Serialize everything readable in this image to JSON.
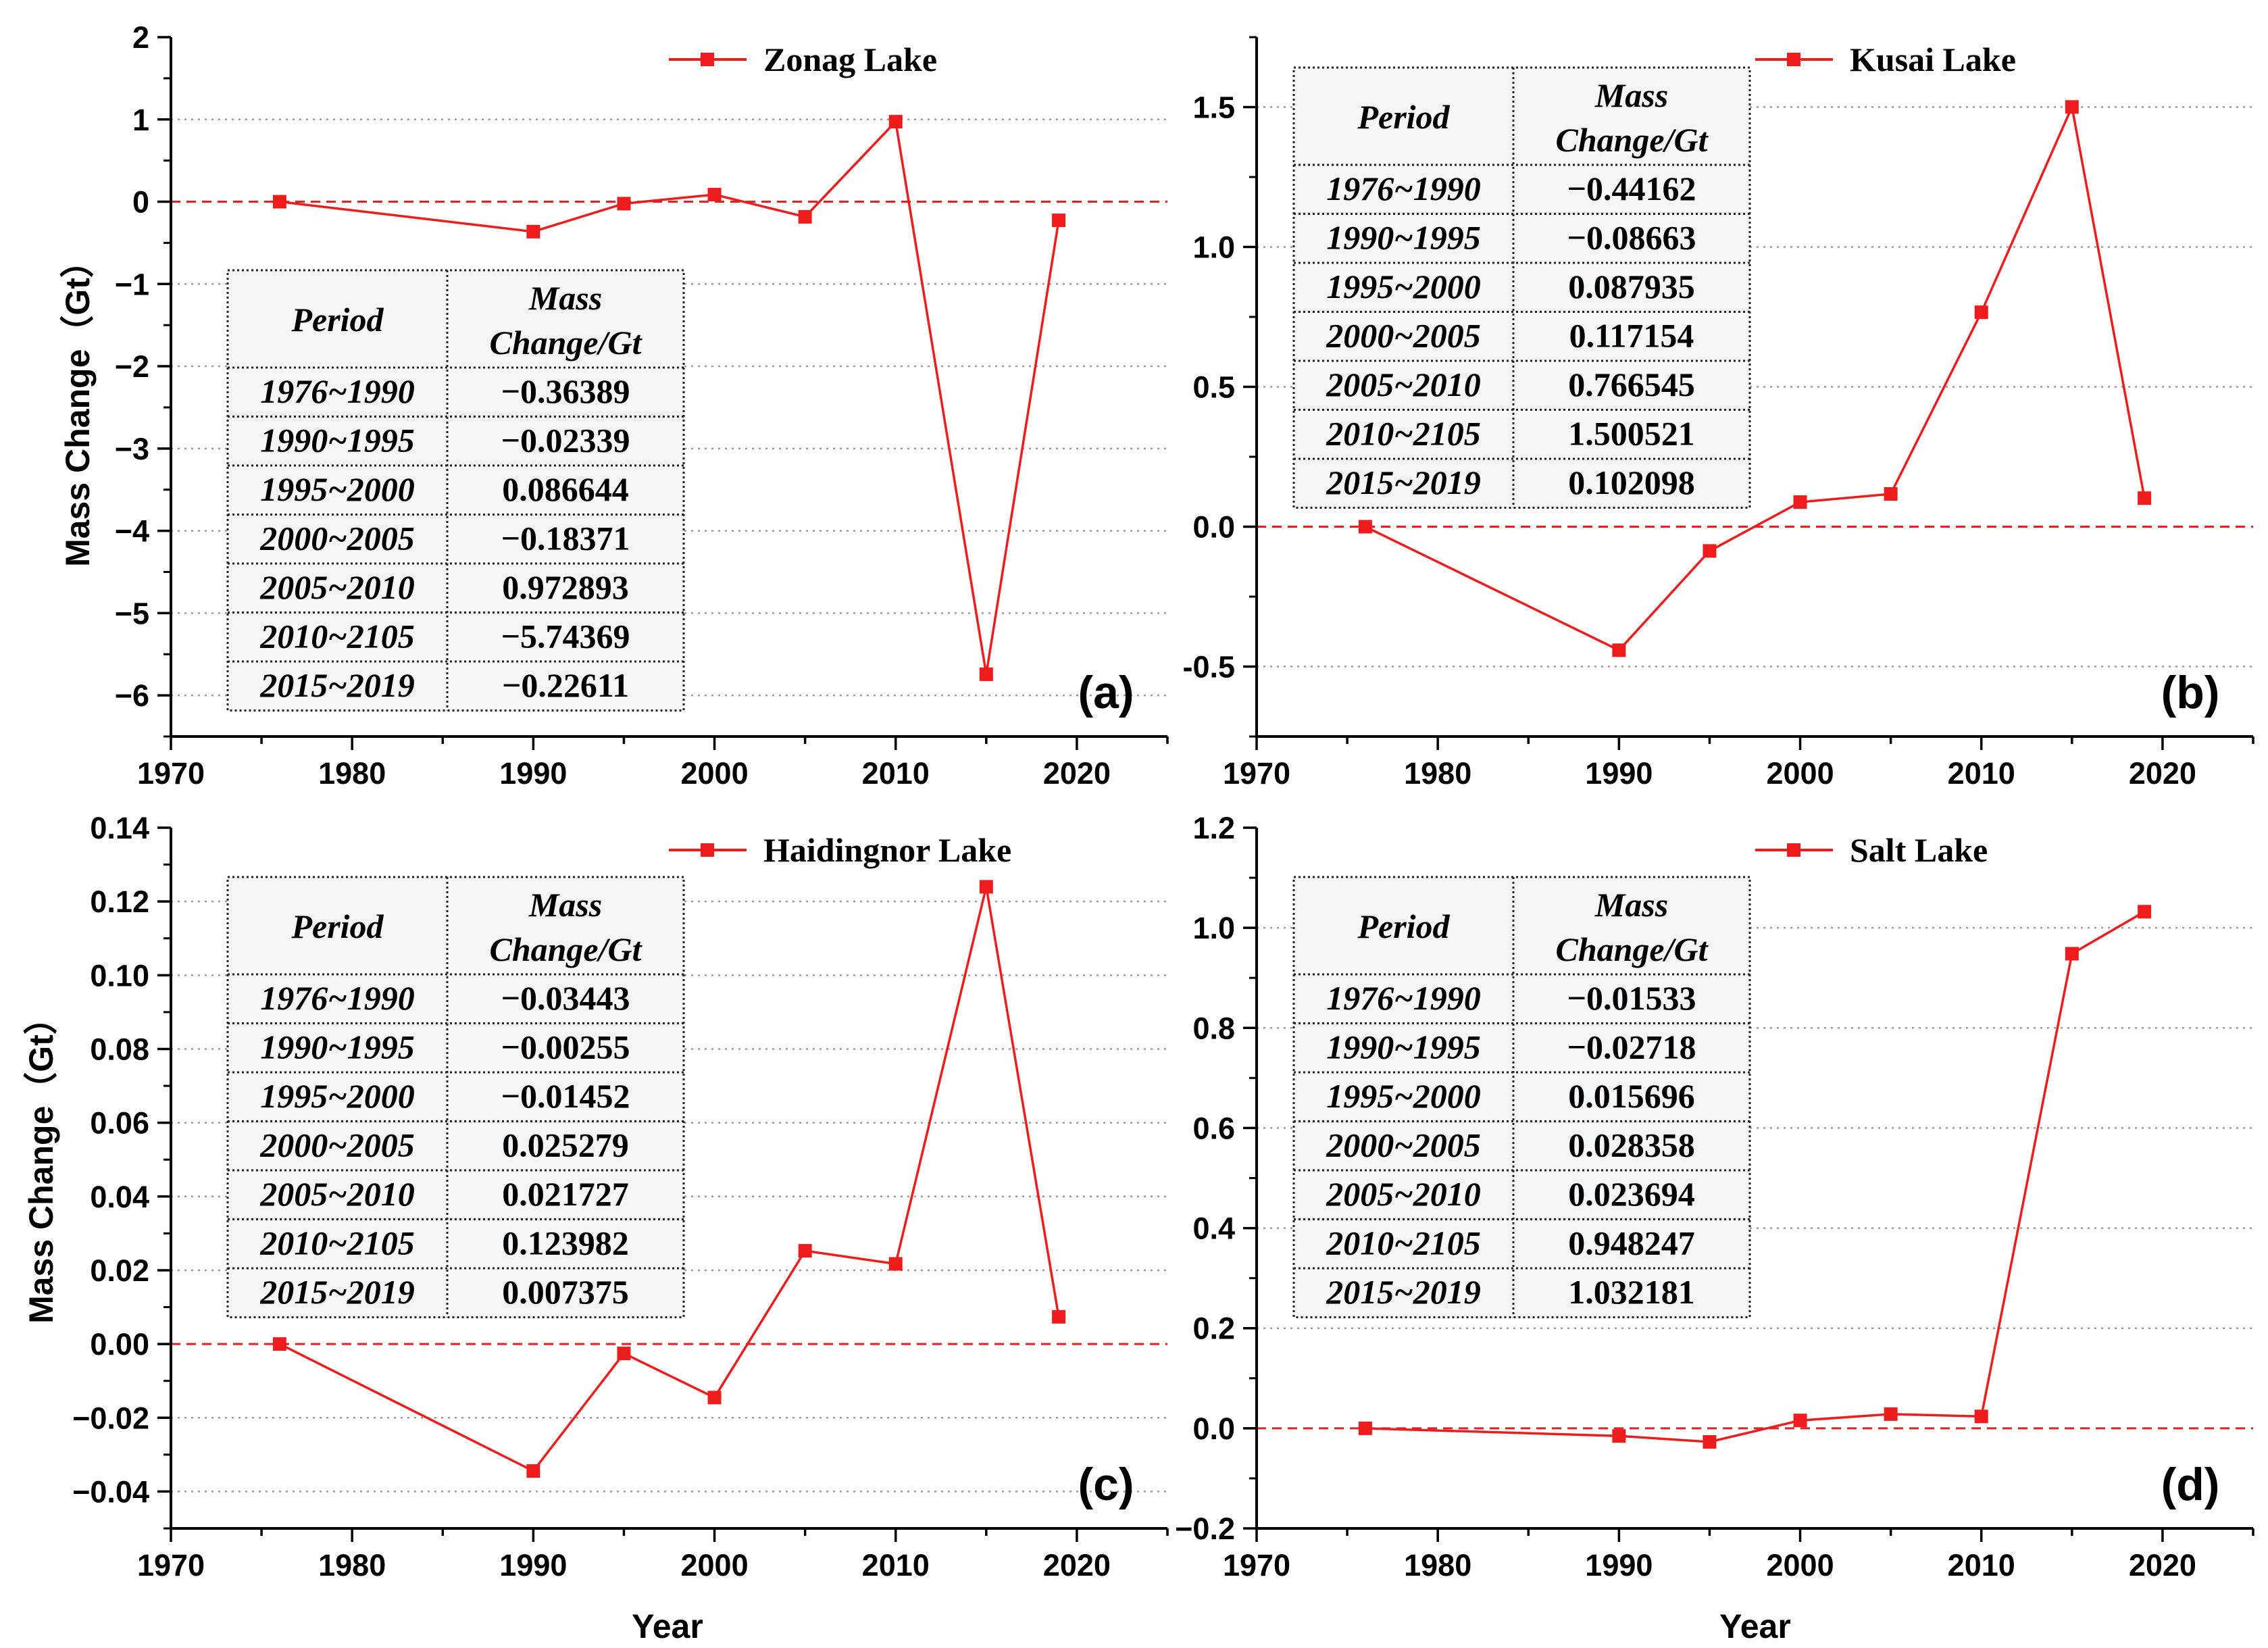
{
  "x_axis_label": "Year",
  "y_axis_label": "Mass Change（Gt）",
  "table_headers": {
    "period": "Period",
    "mass_line1": "Mass",
    "mass_line2": "Change/Gt"
  },
  "colors": {
    "series": "#ee1c1c",
    "zero_line": "#ee1c1c",
    "grid": "#9a9a9a",
    "axis": "#000000",
    "table_bg": "#f2f6f9"
  },
  "chart_data": [
    {
      "type": "line",
      "panel_label": "(a)",
      "title": "",
      "legend": "Zonag Lake",
      "xlabel": "",
      "ylabel": "Mass Change（Gt）",
      "xlim": [
        1970,
        2025
      ],
      "ylim": [
        -6.5,
        2
      ],
      "x_ticks": [
        1970,
        1980,
        1990,
        2000,
        2010,
        2020
      ],
      "y_ticks": [
        2,
        1,
        0,
        -1,
        -2,
        -3,
        -4,
        -5,
        -6
      ],
      "y_tick_labels": [
        "2",
        "1",
        "0",
        "−1",
        "−2",
        "−3",
        "−4",
        "−5",
        "−6"
      ],
      "grid_lines": [
        1,
        -1,
        -2,
        -3,
        -4,
        -5,
        -6
      ],
      "minor_y_step": 0.5,
      "x": [
        1976,
        1990,
        1995,
        2000,
        2005,
        2010,
        2015,
        2019
      ],
      "y": [
        0,
        -0.36389,
        -0.02339,
        0.086644,
        -0.18371,
        0.972893,
        -5.74369,
        -0.22611
      ],
      "table": [
        [
          "1976~1990",
          "−0.36389"
        ],
        [
          "1990~1995",
          "−0.02339"
        ],
        [
          "1995~2000",
          "0.086644"
        ],
        [
          "2000~2005",
          "−0.18371"
        ],
        [
          "2005~2010",
          "0.972893"
        ],
        [
          "2010~2105",
          "−5.74369"
        ],
        [
          "2015~2019",
          "−0.22611"
        ]
      ]
    },
    {
      "type": "line",
      "panel_label": "(b)",
      "title": "",
      "legend": "Kusai Lake",
      "xlabel": "",
      "ylabel": "",
      "xlim": [
        1970,
        2025
      ],
      "ylim": [
        -0.75,
        1.75
      ],
      "x_ticks": [
        1970,
        1980,
        1990,
        2000,
        2010,
        2020
      ],
      "y_ticks": [
        1.5,
        1.0,
        0.5,
        0.0,
        -0.5
      ],
      "y_tick_labels": [
        "1.5",
        "1.0",
        "0.5",
        "0.0",
        "-0.5"
      ],
      "grid_lines": [
        1.5,
        1.0,
        0.5,
        -0.5
      ],
      "minor_y_step": 0.25,
      "x": [
        1976,
        1990,
        1995,
        2000,
        2005,
        2010,
        2015,
        2019
      ],
      "y": [
        0,
        -0.44162,
        -0.08663,
        0.087935,
        0.117154,
        0.766545,
        1.500521,
        0.102098
      ],
      "table": [
        [
          "1976~1990",
          "−0.44162"
        ],
        [
          "1990~1995",
          "−0.08663"
        ],
        [
          "1995~2000",
          "0.087935"
        ],
        [
          "2000~2005",
          "0.117154"
        ],
        [
          "2005~2010",
          "0.766545"
        ],
        [
          "2010~2105",
          "1.500521"
        ],
        [
          "2015~2019",
          "0.102098"
        ]
      ]
    },
    {
      "type": "line",
      "panel_label": "(c)",
      "title": "",
      "legend": "Haidingnor Lake",
      "xlabel": "Year",
      "ylabel": "Mass Change（Gt）",
      "xlim": [
        1970,
        2025
      ],
      "ylim": [
        -0.05,
        0.14
      ],
      "x_ticks": [
        1970,
        1980,
        1990,
        2000,
        2010,
        2020
      ],
      "y_ticks": [
        0.14,
        0.12,
        0.1,
        0.08,
        0.06,
        0.04,
        0.02,
        0.0,
        -0.02,
        -0.04
      ],
      "y_tick_labels": [
        "0.14",
        "0.12",
        "0.10",
        "0.08",
        "0.06",
        "0.04",
        "0.02",
        "0.00",
        "−0.02",
        "−0.04"
      ],
      "grid_lines": [
        0.12,
        0.1,
        0.08,
        0.06,
        0.04,
        0.02,
        -0.02,
        -0.04
      ],
      "minor_y_step": 0.01,
      "x": [
        1976,
        1990,
        1995,
        2000,
        2005,
        2010,
        2015,
        2019
      ],
      "y": [
        0,
        -0.03443,
        -0.00255,
        -0.01452,
        0.025279,
        0.021727,
        0.123982,
        0.007375
      ],
      "table": [
        [
          "1976~1990",
          "−0.03443"
        ],
        [
          "1990~1995",
          "−0.00255"
        ],
        [
          "1995~2000",
          "−0.01452"
        ],
        [
          "2000~2005",
          "0.025279"
        ],
        [
          "2005~2010",
          "0.021727"
        ],
        [
          "2010~2105",
          "0.123982"
        ],
        [
          "2015~2019",
          "0.007375"
        ]
      ]
    },
    {
      "type": "line",
      "panel_label": "(d)",
      "title": "",
      "legend": "Salt Lake",
      "xlabel": "Year",
      "ylabel": "",
      "xlim": [
        1970,
        2025
      ],
      "ylim": [
        -0.2,
        1.2
      ],
      "x_ticks": [
        1970,
        1980,
        1990,
        2000,
        2010,
        2020
      ],
      "y_ticks": [
        1.2,
        1.0,
        0.8,
        0.6,
        0.4,
        0.2,
        0.0,
        -0.2
      ],
      "y_tick_labels": [
        "1.2",
        "1.0",
        "0.8",
        "0.6",
        "0.4",
        "0.2",
        "0.0",
        "−0.2"
      ],
      "grid_lines": [
        1.0,
        0.8,
        0.6,
        0.4,
        0.2
      ],
      "minor_y_step": 0.1,
      "x": [
        1976,
        1990,
        1995,
        2000,
        2005,
        2010,
        2015,
        2019
      ],
      "y": [
        0,
        -0.01533,
        -0.02718,
        0.015696,
        0.028358,
        0.023694,
        0.948247,
        1.032181
      ],
      "table": [
        [
          "1976~1990",
          "−0.01533"
        ],
        [
          "1990~1995",
          "−0.02718"
        ],
        [
          "1995~2000",
          "0.015696"
        ],
        [
          "2000~2005",
          "0.028358"
        ],
        [
          "2005~2010",
          "0.023694"
        ],
        [
          "2010~2105",
          "0.948247"
        ],
        [
          "2015~2019",
          "1.032181"
        ]
      ]
    }
  ]
}
